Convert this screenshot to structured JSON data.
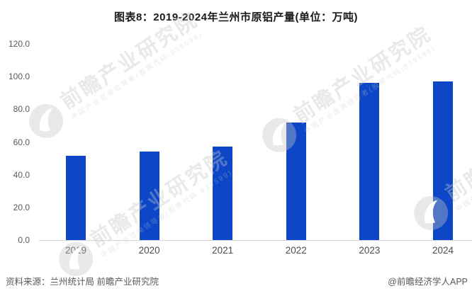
{
  "title": "图表8：2019-2024年兰州市原铝产量(单位：万吨)",
  "footer": {
    "source": "资料来源：兰州统计局 前瞻产业研究院",
    "credit": "@前瞻经济学人APP"
  },
  "watermark": {
    "brand": "前瞻产业研究院",
    "tagline": "中国产业咨询领导者(股票代码:839599)",
    "logo_icon": "qianzhan-swirl-logo"
  },
  "colors": {
    "bar": "#0D47C8",
    "axis_line": "#D7D7D7",
    "tick_label": "#595959",
    "title_text": "#1A1A1A",
    "footer_text": "#595959",
    "watermark": "#EBEBEB"
  },
  "chart_data": {
    "type": "bar",
    "title": "图表8：2019-2024年兰州市原铝产量(单位：万吨)",
    "categories": [
      "2019",
      "2020",
      "2021",
      "2022",
      "2023",
      "2024"
    ],
    "values": [
      51.5,
      54.2,
      57.1,
      71.8,
      96.2,
      97.0
    ],
    "xlabel": "",
    "ylabel": "",
    "unit": "万吨",
    "ylim": [
      0,
      120
    ],
    "ytick_step": 20,
    "ytick_labels": [
      "0.0",
      "20.0",
      "40.0",
      "60.0",
      "80.0",
      "100.0",
      "120.0"
    ],
    "grid": false,
    "legend": false
  }
}
